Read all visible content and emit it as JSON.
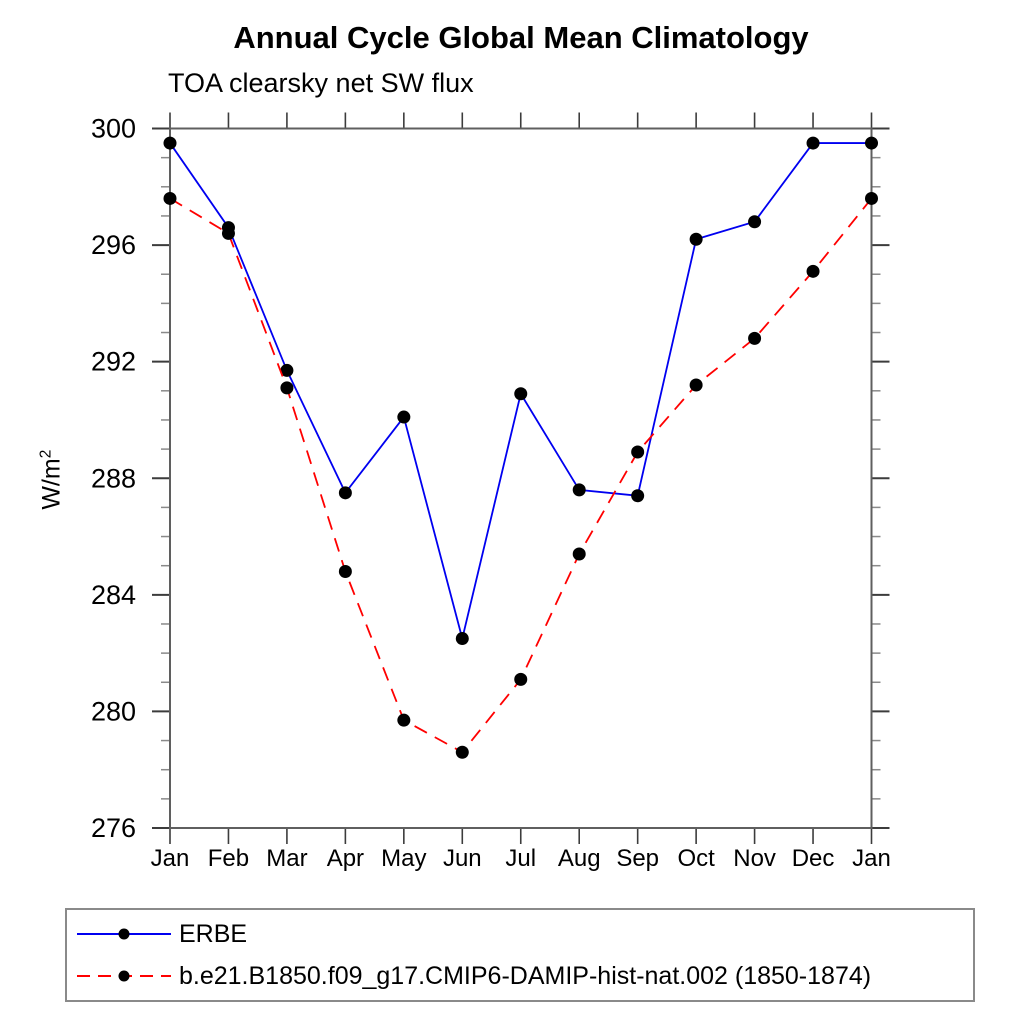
{
  "title": "Annual Cycle Global Mean Climatology",
  "subtitle": "TOA clearsky net SW flux",
  "chart_data": {
    "type": "line",
    "categories": [
      "Jan",
      "Feb",
      "Mar",
      "Apr",
      "May",
      "Jun",
      "Jul",
      "Aug",
      "Sep",
      "Oct",
      "Nov",
      "Dec",
      "Jan"
    ],
    "series": [
      {
        "name": "ERBE",
        "color": "#0000f0",
        "style": "solid",
        "marker": "circle",
        "marker_color": "#000000",
        "values": [
          299.5,
          296.6,
          291.7,
          287.5,
          290.1,
          282.5,
          290.9,
          287.6,
          287.4,
          296.2,
          296.8,
          299.5,
          299.5
        ]
      },
      {
        "name": "b.e21.B1850.f09_g17.CMIP6-DAMIP-hist-nat.002 (1850-1874)",
        "color": "#ff0000",
        "style": "dashed",
        "marker": "circle",
        "marker_color": "#000000",
        "values": [
          297.6,
          296.4,
          291.1,
          284.8,
          279.7,
          278.6,
          281.1,
          285.4,
          288.9,
          291.2,
          292.8,
          295.1,
          297.6
        ]
      }
    ],
    "ylabel": {
      "base": "W/m",
      "exp": "2"
    },
    "xlabel": "",
    "ylim": [
      276,
      300
    ],
    "ytick_major_step": 4,
    "ytick_minor_step": 1,
    "grid": false,
    "legend_position": "bottom"
  }
}
